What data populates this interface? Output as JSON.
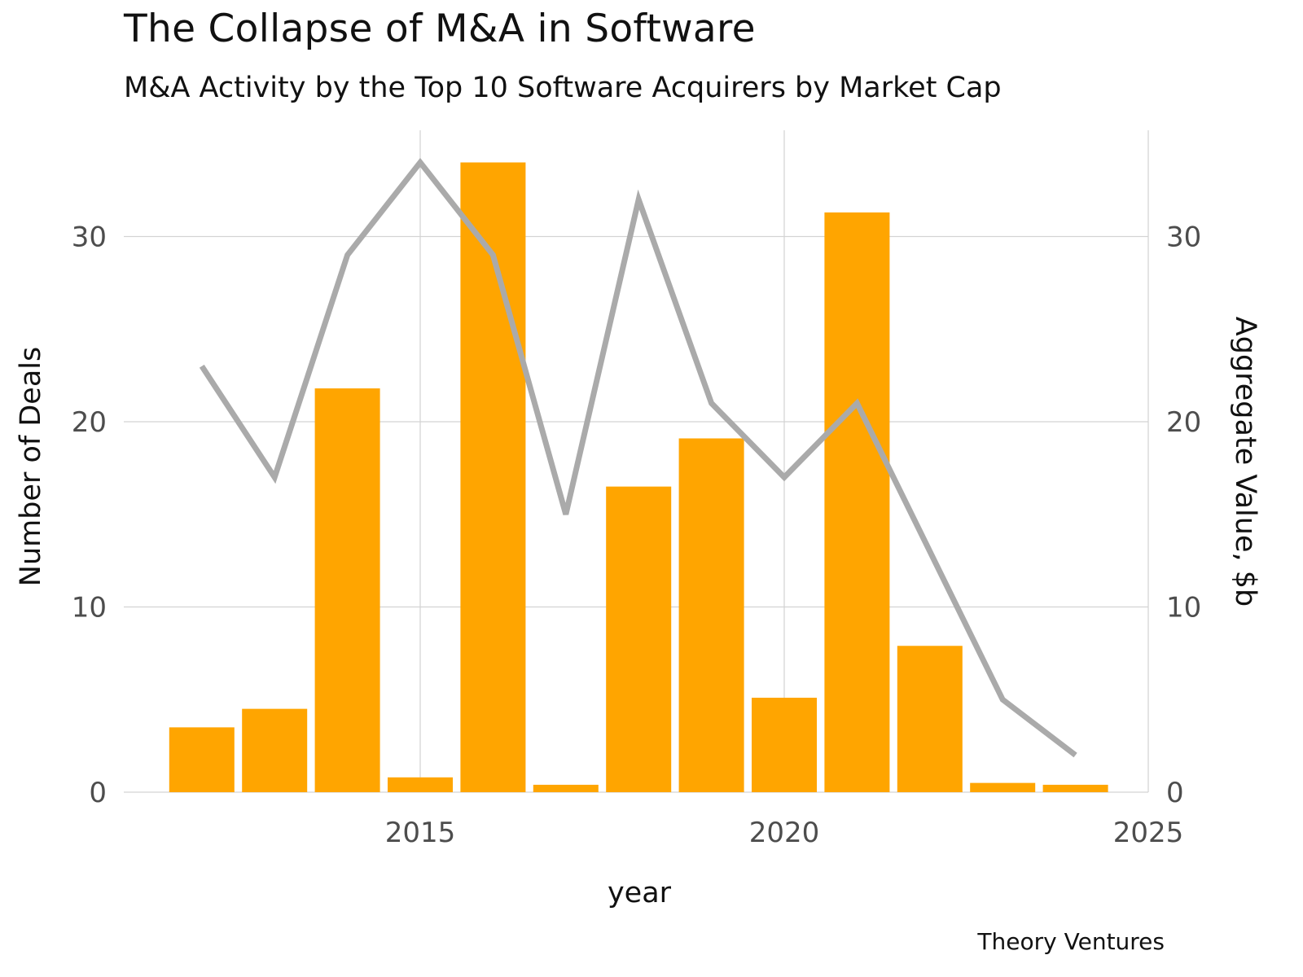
{
  "title": "The Collapse of M&A in Software",
  "subtitle": "M&A Activity by the Top 10 Software Acquirers by Market Cap",
  "caption": "Theory Ventures",
  "colors": {
    "bars": "#FFA500",
    "line": "#AAAAAA",
    "grid": "#D3D3D3",
    "tick_text": "#4D4D4D"
  },
  "chart_data": {
    "type": "bar",
    "xlabel": "year",
    "ylabel": "Number of Deals",
    "y2label": "Aggregate Value, $b",
    "xlim": [
      2011.3,
      2025
    ],
    "ylim": [
      0,
      35.5
    ],
    "y2lim": [
      0,
      35.5
    ],
    "x_ticks": [
      "2015",
      "2020",
      "2025"
    ],
    "y_ticks": [
      "0",
      "10",
      "20",
      "30"
    ],
    "y2_ticks": [
      "0",
      "10",
      "20",
      "30"
    ],
    "grid": true,
    "series": [
      {
        "type": "bar",
        "axis": "left",
        "x": [
          2012,
          2013,
          2014,
          2015,
          2016,
          2017,
          2018,
          2019,
          2020,
          2021,
          2022,
          2023,
          2024
        ],
        "values": [
          3.5,
          4.5,
          21.8,
          0.8,
          34,
          0.4,
          16.5,
          19.1,
          5.1,
          31.3,
          7.9,
          0.5,
          0.4
        ]
      },
      {
        "type": "line",
        "axis": "right",
        "x": [
          2012,
          2013,
          2014,
          2015,
          2016,
          2017,
          2018,
          2019,
          2020,
          2021,
          2022,
          2023,
          2024
        ],
        "values": [
          23,
          17,
          29,
          34,
          29,
          15,
          32,
          21,
          17,
          21,
          13,
          5,
          2
        ]
      }
    ]
  }
}
